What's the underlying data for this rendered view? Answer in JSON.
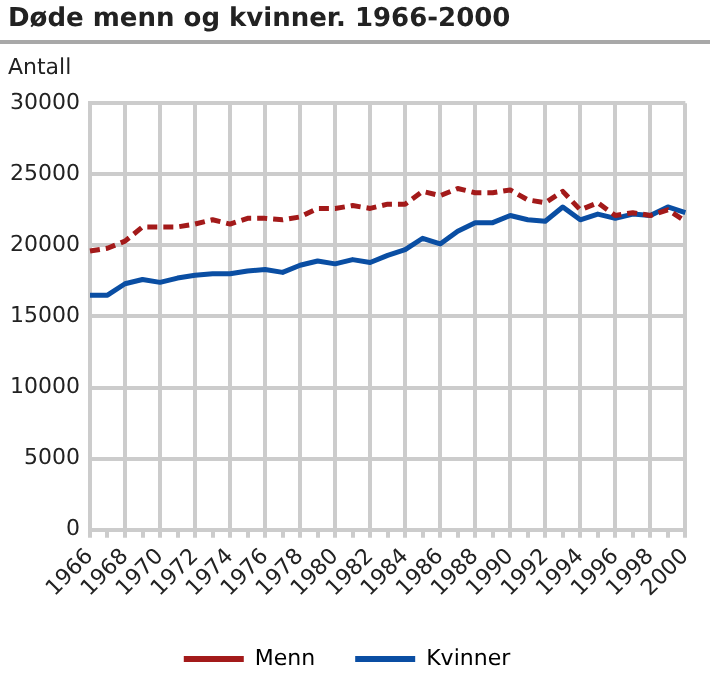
{
  "chart_data": {
    "type": "line",
    "title": "Døde menn og kvinner. 1966-2000",
    "ylabel": "Antall",
    "categories": [
      "1966",
      null,
      "1968",
      null,
      "1970",
      null,
      "1972",
      null,
      "1974",
      null,
      "1976",
      null,
      "1978",
      null,
      "1980",
      null,
      "1982",
      null,
      "1984",
      null,
      "1986",
      null,
      "1988",
      null,
      "1990",
      null,
      "1992",
      null,
      "1994",
      null,
      "1996",
      null,
      "1998",
      null,
      "2000"
    ],
    "series": [
      {
        "name": "Menn",
        "color": "#a31a1a",
        "line_style": "dashed",
        "values": [
          19600,
          19800,
          20300,
          21300,
          21300,
          21300,
          21500,
          21800,
          21500,
          21900,
          21900,
          21800,
          22000,
          22600,
          22600,
          22800,
          22600,
          22900,
          22900,
          23800,
          23500,
          24000,
          23700,
          23700,
          23900,
          23200,
          23000,
          23800,
          22500,
          23000,
          22100,
          22300,
          22100,
          22500,
          21700
        ]
      },
      {
        "name": "Kvinner",
        "color": "#0a4ea3",
        "line_style": "solid",
        "values": [
          16500,
          16500,
          17300,
          17600,
          17400,
          17700,
          17900,
          18000,
          18000,
          18200,
          18300,
          18100,
          18600,
          18900,
          18700,
          19000,
          18800,
          19300,
          19700,
          20500,
          20100,
          21000,
          21600,
          21600,
          22100,
          21800,
          21700,
          22700,
          21800,
          22200,
          21900,
          22200,
          22100,
          22700,
          22300
        ]
      }
    ],
    "ylim": [
      0,
      30000
    ],
    "yticks": [
      0,
      5000,
      10000,
      15000,
      20000,
      25000,
      30000
    ],
    "grid": true,
    "legend": "bottom",
    "marker": "none"
  }
}
